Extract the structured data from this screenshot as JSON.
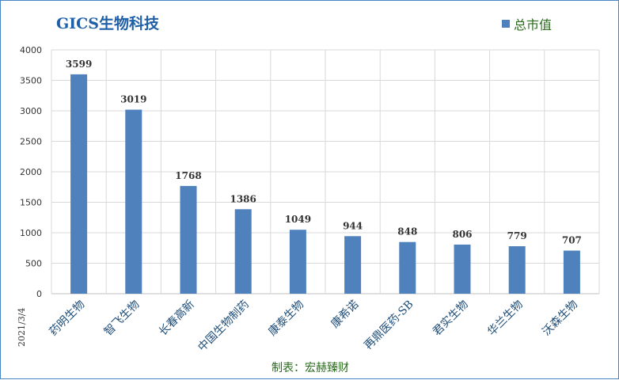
{
  "chart_data": {
    "type": "bar",
    "title": "GICS生物科技",
    "legend_position": "top-right",
    "grid": true,
    "ylim": [
      0,
      4000
    ],
    "yticks": [
      0,
      500,
      1000,
      1500,
      2000,
      2500,
      3000,
      3500,
      4000
    ],
    "categories": [
      "药明生物",
      "智飞生物",
      "长春高新",
      "中国生物制药",
      "康泰生物",
      "康希诺",
      "再鼎医药-SB",
      "君实生物",
      "华兰生物",
      "沃森生物"
    ],
    "series": [
      {
        "name": "总市值",
        "values": [
          3599,
          3019,
          1768,
          1386,
          1049,
          944,
          848,
          806,
          779,
          707
        ]
      }
    ]
  },
  "colors": {
    "bar": "#4f81bd",
    "title": "#1f5fa8",
    "legend_text": "#2b6b1e",
    "credit_text": "#2b6b1e",
    "frame_border": "#4a86c5",
    "grid": "#d9d9d9"
  },
  "footer": {
    "credit": "制表：宏赫臻财",
    "date": "2021/3/4"
  }
}
